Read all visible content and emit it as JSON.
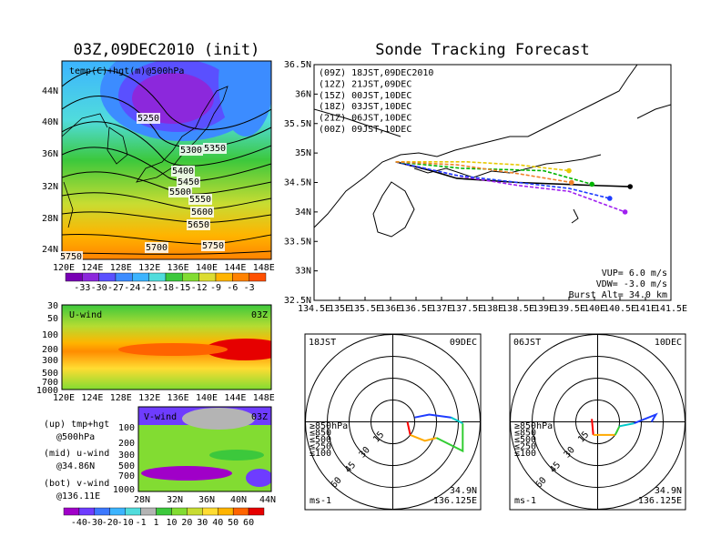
{
  "maps": {
    "title": "03Z,09DEC2010 (init)",
    "upper": {
      "label": "temp(C)+hgt(m)@500hPa",
      "lat_labels": [
        "44N",
        "40N",
        "36N",
        "32N",
        "28N",
        "24N"
      ],
      "lon_labels": [
        "120E",
        "124E",
        "128E",
        "132E",
        "136E",
        "140E",
        "144E",
        "148E"
      ],
      "contour_labels": [
        5250,
        5300,
        5350,
        5400,
        5450,
        5500,
        5550,
        5600,
        5650,
        5700,
        5750,
        5750
      ],
      "colorbar_labels": [
        -33,
        -30,
        -27,
        -24,
        -21,
        -18,
        -15,
        -12,
        -9,
        -6,
        -3
      ]
    },
    "middle": {
      "label": "U-wind",
      "time": "03Z",
      "pressure_labels": [
        30,
        50,
        100,
        200,
        300,
        500,
        700,
        1000
      ],
      "lon_labels": [
        "120E",
        "124E",
        "128E",
        "132E",
        "136E",
        "140E",
        "144E",
        "148E"
      ]
    },
    "lower": {
      "label": "V-wind",
      "time": "03Z",
      "pressure_labels": [
        100,
        200,
        300,
        500,
        700,
        1000
      ],
      "lat_labels": [
        "28N",
        "32N",
        "36N",
        "40N",
        "44N"
      ],
      "colorbar_labels": [
        -40,
        -30,
        -20,
        -10,
        -1,
        1,
        10,
        20,
        30,
        40,
        50,
        60
      ]
    },
    "notes": [
      "(up) tmp+hgt",
      "@500hPa",
      "(mid) u-wind",
      "@34.86N",
      "(bot) v-wind",
      "@136.11E"
    ]
  },
  "chart_data": [
    {
      "type": "track",
      "title": "Sonde Tracking Forecast",
      "xlim": [
        134.5,
        141.5
      ],
      "ylim": [
        32.5,
        36.5
      ],
      "xticks": [
        {
          "value": 134.5,
          "label": "134.5E"
        },
        {
          "value": 135,
          "label": "135E"
        },
        {
          "value": 135.5,
          "label": "135.5E"
        },
        {
          "value": 136,
          "label": "136E"
        },
        {
          "value": 136.5,
          "label": "136.5E"
        },
        {
          "value": 137,
          "label": "137E"
        },
        {
          "value": 137.5,
          "label": "137.5E"
        },
        {
          "value": 138,
          "label": "138E"
        },
        {
          "value": 138.5,
          "label": "138.5E"
        },
        {
          "value": 139,
          "label": "139E"
        },
        {
          "value": 139.5,
          "label": "139.5E"
        },
        {
          "value": 140,
          "label": "140E"
        },
        {
          "value": 140.5,
          "label": "140.5E"
        },
        {
          "value": 141,
          "label": "141E"
        },
        {
          "value": 141.5,
          "label": "141.5E"
        }
      ],
      "yticks": [
        {
          "value": 32.5,
          "label": "32.5N"
        },
        {
          "value": 33,
          "label": "33N"
        },
        {
          "value": 33.5,
          "label": "33.5N"
        },
        {
          "value": 34,
          "label": "34N"
        },
        {
          "value": 34.5,
          "label": "34.5N"
        },
        {
          "value": 35,
          "label": "35N"
        },
        {
          "value": 35.5,
          "label": "35.5N"
        },
        {
          "value": 36,
          "label": "36N"
        },
        {
          "value": 36.5,
          "label": "36.5N"
        }
      ],
      "series": [
        {
          "name": "(09Z) 18JST,09DEC2010",
          "color": "#000000",
          "x": [
            136.1,
            136.8,
            137.3,
            138.5,
            140.0,
            140.7
          ],
          "y": [
            34.85,
            34.7,
            34.57,
            34.5,
            34.45,
            34.43
          ]
        },
        {
          "name": "(12Z) 21JST,09DEC",
          "color": "#a020f0",
          "x": [
            136.1,
            137.4,
            138.5,
            139.5,
            140.6
          ],
          "y": [
            34.85,
            34.6,
            34.45,
            34.35,
            34.0
          ]
        },
        {
          "name": "(15Z) 00JST,10DEC",
          "color": "#1e3cff",
          "x": [
            136.1,
            137.3,
            138.5,
            139.5,
            140.3
          ],
          "y": [
            34.85,
            34.62,
            34.5,
            34.4,
            34.23
          ]
        },
        {
          "name": "(18Z) 03JST,10DEC",
          "color": "#00b400",
          "x": [
            136.1,
            137.4,
            139.0,
            139.95
          ],
          "y": [
            34.85,
            34.74,
            34.7,
            34.47
          ]
        },
        {
          "name": "(21Z) 06JST,10DEC",
          "color": "#e6c800",
          "x": [
            136.1,
            137.5,
            138.5,
            139.5
          ],
          "y": [
            34.85,
            34.85,
            34.8,
            34.7
          ]
        },
        {
          "name": "(00Z) 09JST,10DEC",
          "color": "#f08228",
          "x": [
            136.1,
            137.3,
            138.5,
            139.55
          ],
          "y": [
            34.85,
            34.8,
            34.65,
            34.5
          ]
        }
      ],
      "annotations": [
        "VUP= 6.0 m/s",
        "VDW= -3.0 m/s",
        "Burst Alt= 34.0 km"
      ]
    },
    {
      "type": "polar",
      "time": "18JST",
      "date": "09DEC",
      "rlim": [
        0,
        60
      ],
      "rticks": [
        15,
        30,
        45,
        60
      ],
      "unit": "ms-1",
      "lat": "34.9N",
      "lon": "136.125E",
      "series": [
        {
          "name": "≥850hPa",
          "color": "#ff0000",
          "u": [
            10,
            12
          ],
          "v": [
            0,
            -9
          ]
        },
        {
          "name": "≤850",
          "color": "#ffaa00",
          "u": [
            12,
            22,
            30
          ],
          "v": [
            -9,
            -13,
            -11
          ]
        },
        {
          "name": "≤500",
          "color": "#32cd32",
          "u": [
            30,
            48,
            48
          ],
          "v": [
            -11,
            -20,
            -1
          ]
        },
        {
          "name": "≤250",
          "color": "#00c8c8",
          "u": [
            48,
            40
          ],
          "v": [
            -1,
            3
          ]
        },
        {
          "name": "≤100",
          "color": "#1e3cff",
          "u": [
            40,
            25,
            15
          ],
          "v": [
            3,
            5,
            3
          ]
        }
      ]
    },
    {
      "type": "polar",
      "time": "06JST",
      "date": "10DEC",
      "rlim": [
        0,
        60
      ],
      "rticks": [
        15,
        30,
        45,
        60
      ],
      "unit": "ms-1",
      "lat": "34.9N",
      "lon": "136.125E",
      "series": [
        {
          "name": "≥850hPa",
          "color": "#ff0000",
          "u": [
            -4,
            -3
          ],
          "v": [
            2,
            -9
          ]
        },
        {
          "name": "≤850",
          "color": "#ffaa00",
          "u": [
            -3,
            12
          ],
          "v": [
            -9,
            -9
          ]
        },
        {
          "name": "≤500",
          "color": "#32cd32",
          "u": [
            12,
            15
          ],
          "v": [
            -9,
            -3
          ]
        },
        {
          "name": "≤250",
          "color": "#00c8c8",
          "u": [
            15,
            25
          ],
          "v": [
            -3,
            -1
          ]
        },
        {
          "name": "≤100",
          "color": "#1e3cff",
          "u": [
            25,
            40,
            37
          ],
          "v": [
            -1,
            5,
            0
          ]
        }
      ]
    }
  ]
}
